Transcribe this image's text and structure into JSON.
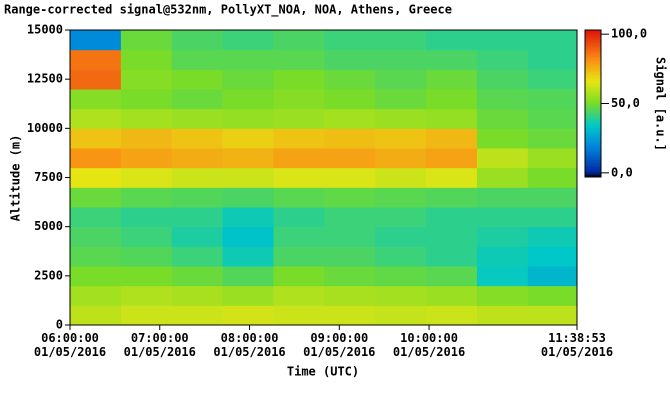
{
  "chart_data": {
    "type": "heatmap",
    "title": "Range-corrected signal@532nm, PollyXT_NOA, NOA, Athens, Greece",
    "x_label": "Time (UTC)",
    "y_label": "Altitude (m)",
    "colorbar_label": "Signal [a.u.]",
    "xlim": [
      "06:00:00",
      "11:38:53"
    ],
    "xticks": [
      {
        "value": "06:00:00",
        "label": "06:00:00\n01/05/2016"
      },
      {
        "value": "07:00:00",
        "label": "07:00:00\n01/05/2016"
      },
      {
        "value": "08:00:00",
        "label": "08:00:00\n01/05/2016"
      },
      {
        "value": "09:00:00",
        "label": "09:00:00\n01/05/2016"
      },
      {
        "value": "10:00:00",
        "label": "10:00:00\n01/05/2016"
      },
      {
        "value": "11:38:53",
        "label": "11:38:53\n01/05/2016"
      }
    ],
    "ylim": [
      0,
      15000
    ],
    "yticks": [
      0,
      2500,
      5000,
      7500,
      10000,
      12500,
      15000
    ],
    "clim": [
      -3,
      103
    ],
    "cticks": [
      {
        "value": 0,
        "label": "0,0"
      },
      {
        "value": 50,
        "label": "50,0"
      },
      {
        "value": 100,
        "label": "100,0"
      }
    ],
    "x_edges": [
      "06:00:00",
      "06:34:00",
      "07:08:00",
      "07:42:00",
      "08:16:00",
      "08:50:00",
      "09:24:00",
      "09:58:00",
      "10:32:00",
      "11:06:00",
      "11:38:53"
    ],
    "y_edges": [
      0,
      1000,
      2000,
      3000,
      4000,
      5000,
      6000,
      7000,
      8000,
      9000,
      10000,
      11000,
      12000,
      13000,
      14000,
      15000
    ],
    "z": [
      [
        60,
        62,
        62,
        63,
        62,
        62,
        61,
        62,
        60,
        60
      ],
      [
        56,
        58,
        57,
        55,
        58,
        57,
        56,
        55,
        52,
        50
      ],
      [
        50,
        50,
        48,
        45,
        50,
        48,
        47,
        46,
        35,
        30
      ],
      [
        46,
        45,
        42,
        36,
        44,
        44,
        42,
        40,
        36,
        34
      ],
      [
        44,
        42,
        38,
        33,
        42,
        42,
        40,
        40,
        38,
        36
      ],
      [
        42,
        40,
        40,
        36,
        40,
        42,
        42,
        40,
        40,
        40
      ],
      [
        48,
        46,
        45,
        44,
        46,
        47,
        46,
        45,
        44,
        44
      ],
      [
        66,
        64,
        62,
        62,
        64,
        64,
        62,
        64,
        55,
        50
      ],
      [
        80,
        78,
        76,
        75,
        78,
        78,
        76,
        78,
        60,
        55
      ],
      [
        72,
        74,
        72,
        70,
        72,
        73,
        72,
        74,
        50,
        48
      ],
      [
        58,
        56,
        55,
        54,
        55,
        56,
        55,
        54,
        48,
        46
      ],
      [
        52,
        50,
        48,
        50,
        52,
        50,
        48,
        50,
        46,
        45
      ],
      [
        88,
        52,
        50,
        48,
        50,
        48,
        46,
        48,
        44,
        42
      ],
      [
        86,
        50,
        46,
        46,
        46,
        44,
        44,
        44,
        42,
        40
      ],
      [
        20,
        48,
        44,
        42,
        44,
        42,
        42,
        40,
        40,
        40
      ]
    ]
  }
}
